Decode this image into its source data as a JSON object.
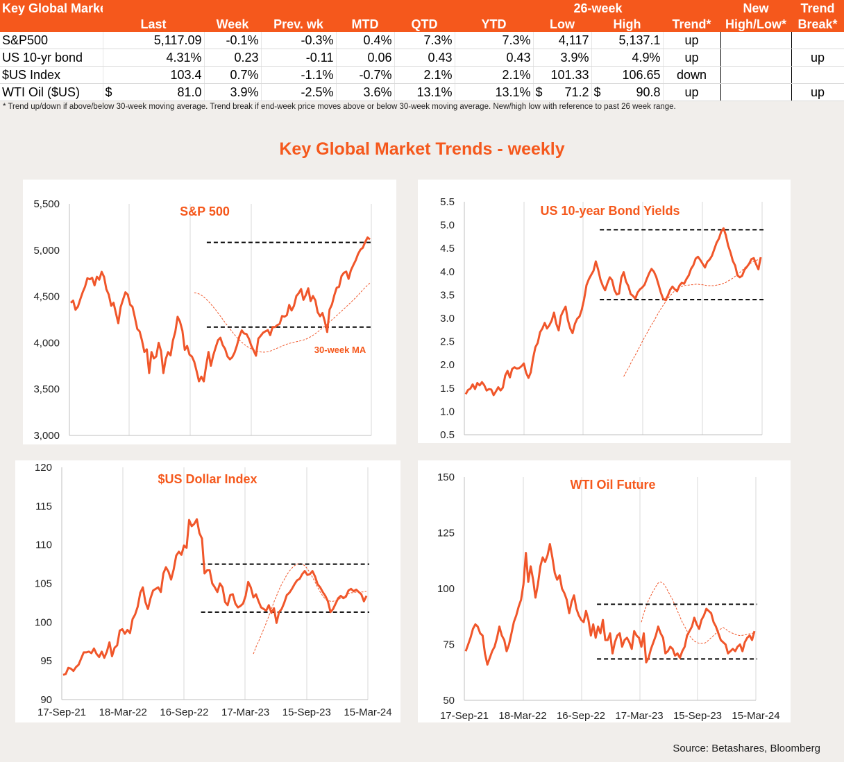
{
  "table": {
    "title": "Key Global Markets",
    "group_header": "26-week",
    "headers": [
      "Last",
      "Week",
      "Prev. wk",
      "MTD",
      "QTD",
      "YTD",
      "Low",
      "High",
      "Trend*",
      "High/Low*",
      "Break*"
    ],
    "top_headers": [
      "New",
      "Trend"
    ],
    "rows": [
      {
        "name": "S&P500",
        "last": "5,117.09",
        "week": "-0.1%",
        "prev_wk": "-0.3%",
        "mtd": "0.4%",
        "qtd": "7.3%",
        "ytd": "7.3%",
        "low": "4,117",
        "high": "5,137.1",
        "trend": "up",
        "new_high_low": "",
        "trend_break": ""
      },
      {
        "name": "US 10-yr bond",
        "last": "4.31%",
        "week": "0.23",
        "prev_wk": "-0.11",
        "mtd": "0.06",
        "qtd": "0.43",
        "ytd": "0.43",
        "low": "3.9%",
        "high": "4.9%",
        "trend": "up",
        "new_high_low": "",
        "trend_break": "up"
      },
      {
        "name": "$US Index",
        "last": "103.4",
        "week": "0.7%",
        "prev_wk": "-1.1%",
        "mtd": "-0.7%",
        "qtd": "2.1%",
        "ytd": "2.1%",
        "low": "101.33",
        "high": "106.65",
        "trend": "down",
        "new_high_low": "",
        "trend_break": ""
      },
      {
        "name": "WTI Oil ($US)",
        "last_prefix": "$",
        "last": "81.0",
        "week": "3.9%",
        "prev_wk": "-2.5%",
        "mtd": "3.6%",
        "qtd": "13.1%",
        "ytd": "13.1%",
        "low_prefix": "$",
        "low": "71.2",
        "high_prefix": "$",
        "high": "90.8",
        "trend": "up",
        "new_high_low": "",
        "trend_break": "up"
      }
    ]
  },
  "footnote": "*  Trend up/down if above/below 30-week moving average. Trend break if end-week price moves above or below 30-week moving average.  New/high low with reference to past 26 week range.",
  "main_title": "Key Global Market Trends - weekly",
  "source": "Source:  Betashares, Bloomberg",
  "colors": {
    "accent": "#f5581c",
    "line": "#f0562a",
    "ma": "#f0562a",
    "range": "#000000"
  },
  "chart_data": [
    {
      "type": "line",
      "title": "S&P 500",
      "ylim": [
        3000,
        5500
      ],
      "yticks": [
        "3,000",
        "3,500",
        "4,000",
        "4,500",
        "5,000",
        "5,500"
      ],
      "annotation": "30-week MA",
      "range_lines": [
        5084,
        4170
      ],
      "series": [
        {
          "name": "",
          "values": [
            4432,
            4455,
            4357,
            4391,
            4471,
            4545,
            4605,
            4697,
            4686,
            4701,
            4620,
            4713,
            4682,
            4766,
            4712,
            4577,
            4520,
            4399,
            4432,
            4320,
            4212,
            4385,
            4467,
            4545,
            4520,
            4412,
            4388,
            4271,
            4149,
            4123,
            4023,
            3901,
            3930,
            3674,
            3900,
            3831,
            3853,
            4000,
            3911,
            3674,
            3825,
            3900,
            3864,
            4023,
            4117,
            4281,
            4228,
            4130,
            3924,
            3966,
            3873,
            3852,
            3794,
            3693,
            3584,
            3635,
            3583,
            3752,
            3901,
            3752,
            3863,
            3949,
            4028,
            4055,
            3975,
            3934,
            3852,
            3822,
            3844,
            3895,
            3972,
            4070,
            4134,
            4100,
            4095,
            4046,
            3970,
            3917,
            3861,
            4045,
            4076,
            4109,
            4124,
            4137,
            4083,
            4171,
            4169,
            4191,
            4205,
            4289,
            4282,
            4299,
            4409,
            4349,
            4398,
            4505,
            4536,
            4581,
            4464,
            4515,
            4588,
            4450,
            4505,
            4458,
            4330,
            4287,
            4321,
            4230,
            4117,
            4358,
            4415,
            4514,
            4594,
            4604,
            4719,
            4755,
            4769,
            4690,
            4784,
            4840,
            4891,
            4959,
            5005,
            5026,
            5089,
            5137,
            5117
          ]
        },
        {
          "name": "",
          "values": [
            4540,
            4537,
            4528,
            4514,
            4495,
            4472,
            4446,
            4418,
            4388,
            4356,
            4322,
            4288,
            4253,
            4218,
            4184,
            4151,
            4118,
            4087,
            4058,
            4031,
            4006,
            3984,
            3965,
            3949,
            3935,
            3924,
            3915,
            3907,
            3901,
            3899,
            3900,
            3904,
            3911,
            3920,
            3931,
            3942,
            3953,
            3964,
            3975,
            3985,
            3993,
            4000,
            4006,
            4012,
            4017,
            4023,
            4030,
            4039,
            4051,
            4065,
            4081,
            4099,
            4118,
            4139,
            4160,
            4181,
            4203,
            4225,
            4248,
            4271,
            4294,
            4317,
            4341,
            4365,
            4389,
            4413,
            4438,
            4463,
            4488,
            4515,
            4542,
            4570,
            4597,
            4622,
            4645
          ]
        }
      ]
    },
    {
      "type": "line",
      "title": "US 10-year Bond Yields",
      "ylim": [
        0.5,
        5.5
      ],
      "yticks": [
        "0.5",
        "1.0",
        "1.5",
        "2.0",
        "2.5",
        "3.0",
        "3.5",
        "4.0",
        "4.5",
        "5.0",
        "5.5"
      ],
      "range_lines": [
        4.9,
        3.4
      ],
      "series": [
        {
          "name": "",
          "values": [
            1.37,
            1.46,
            1.49,
            1.58,
            1.48,
            1.61,
            1.56,
            1.63,
            1.56,
            1.45,
            1.48,
            1.47,
            1.35,
            1.43,
            1.52,
            1.45,
            1.51,
            1.77,
            1.87,
            1.73,
            1.91,
            1.95,
            1.92,
            1.93,
            1.97,
            2.03,
            1.83,
            1.72,
            1.84,
            2.14,
            2.38,
            2.47,
            2.7,
            2.78,
            2.9,
            2.78,
            2.85,
            2.95,
            3.12,
            2.88,
            2.74,
            3.05,
            3.16,
            3.25,
            2.96,
            2.78,
            2.68,
            2.88,
            2.99,
            3.04,
            3.19,
            3.42,
            3.71,
            3.84,
            3.93,
            4.02,
            4.22,
            4.05,
            3.83,
            3.7,
            3.6,
            3.75,
            3.88,
            3.82,
            3.61,
            3.51,
            3.53,
            3.87,
            3.99,
            3.79,
            3.69,
            3.52,
            3.48,
            3.42,
            3.55,
            3.62,
            3.66,
            3.72,
            3.85,
            3.97,
            4.06,
            4.0,
            3.89,
            3.72,
            3.55,
            3.42,
            3.39,
            3.48,
            3.61,
            3.68,
            3.62,
            3.58,
            3.7,
            3.76,
            3.74,
            3.84,
            3.92,
            4.06,
            4.14,
            4.28,
            4.32,
            4.25,
            4.17,
            4.09,
            4.21,
            4.26,
            4.34,
            4.48,
            4.62,
            4.71,
            4.86,
            4.93,
            4.78,
            4.56,
            4.41,
            4.23,
            4.13,
            3.92,
            3.88,
            3.91,
            4.04,
            4.1,
            4.17,
            4.27,
            4.29,
            4.16,
            4.05,
            4.31
          ]
        },
        {
          "name": "",
          "values": [
            1.75,
            1.84,
            1.93,
            2.03,
            2.12,
            2.21,
            2.3,
            2.4,
            2.5,
            2.59,
            2.68,
            2.77,
            2.86,
            2.94,
            3.03,
            3.12,
            3.2,
            3.28,
            3.35,
            3.42,
            3.48,
            3.54,
            3.59,
            3.63,
            3.66,
            3.68,
            3.7,
            3.71,
            3.71,
            3.72,
            3.72,
            3.73,
            3.73,
            3.72,
            3.72,
            3.71,
            3.7,
            3.7,
            3.7,
            3.7,
            3.71,
            3.72,
            3.73,
            3.75,
            3.77,
            3.8,
            3.83,
            3.86,
            3.9,
            3.94,
            3.98,
            4.03,
            4.08,
            4.12,
            4.16,
            4.19,
            4.22,
            4.24,
            4.26,
            4.28
          ]
        }
      ]
    },
    {
      "type": "line",
      "title": "$US Dollar Index",
      "ylim": [
        90,
        120
      ],
      "yticks": [
        "90",
        "95",
        "100",
        "105",
        "110",
        "115",
        "120"
      ],
      "xticks": [
        "17-Sep-21",
        "18-Mar-22",
        "16-Sep-22",
        "17-Mar-23",
        "15-Sep-23",
        "15-Mar-24"
      ],
      "range_lines": [
        107.5,
        101.3
      ],
      "series": [
        {
          "name": "",
          "values": [
            93.2,
            93.3,
            94.1,
            94.0,
            93.7,
            94.2,
            94.5,
            95.3,
            96.1,
            96.1,
            96.2,
            96.0,
            96.6,
            95.9,
            95.5,
            96.2,
            95.4,
            96.2,
            97.4,
            95.6,
            96.7,
            97.0,
            98.9,
            99.1,
            98.5,
            99.0,
            98.6,
            100.4,
            101.0,
            102.0,
            103.8,
            104.5,
            102.6,
            101.7,
            103.1,
            104.1,
            104.3,
            104.5,
            103.9,
            106.3,
            107.1,
            106.5,
            105.5,
            106.8,
            108.6,
            109.1,
            108.7,
            109.9,
            109.6,
            113.2,
            112.4,
            112.7,
            113.3,
            111.5,
            110.8,
            106.3,
            106.7,
            106.7,
            105.0,
            104.5,
            103.9,
            105.0,
            104.5,
            102.6,
            102.2,
            103.5,
            103.6,
            102.4,
            101.9,
            102.1,
            102.4,
            103.4,
            105.2,
            104.5,
            103.2,
            103.6,
            102.7,
            101.9,
            101.7,
            101.5,
            102.2,
            101.2,
            101.8,
            99.9,
            101.3,
            101.7,
            102.5,
            103.5,
            103.8,
            104.3,
            104.9,
            105.4,
            105.6,
            106.2,
            106.6,
            106.1,
            106.2,
            106.6,
            105.9,
            104.9,
            104.5,
            103.9,
            103.4,
            102.7,
            101.3,
            101.7,
            102.4,
            103.1,
            103.4,
            103.1,
            103.3,
            104.1,
            104.3,
            104.0,
            104.2,
            103.9,
            103.6,
            102.7,
            103.4
          ]
        },
        {
          "name": "",
          "values": [
            95.9,
            96.8,
            97.5,
            98.3,
            99.1,
            99.9,
            100.8,
            101.7,
            102.6,
            103.4,
            104.2,
            104.9,
            105.5,
            106.1,
            106.6,
            107.0,
            107.3,
            107.5,
            107.6,
            107.5,
            107.3,
            106.9,
            106.4,
            105.8,
            105.2,
            104.5,
            103.9,
            103.4,
            103.0,
            102.8,
            102.7,
            102.7,
            102.8,
            102.9,
            103.1,
            103.3,
            103.5,
            103.7,
            103.8,
            103.8,
            103.9,
            103.9,
            103.9,
            103.9,
            104.0
          ]
        }
      ]
    },
    {
      "type": "line",
      "title": "WTI Oil Future",
      "ylim": [
        50,
        150
      ],
      "yticks": [
        "50",
        "75",
        "100",
        "125",
        "150"
      ],
      "xticks": [
        "17-Sep-21",
        "18-Mar-22",
        "16-Sep-22",
        "17-Mar-23",
        "15-Sep-23",
        "15-Mar-24"
      ],
      "range_lines": [
        93,
        68.5
      ],
      "series": [
        {
          "name": "",
          "values": [
            72,
            75,
            78,
            82,
            84,
            83,
            80,
            79,
            71,
            66,
            69,
            72,
            74,
            78,
            83,
            79,
            77,
            72,
            75,
            80,
            85,
            88,
            92,
            95,
            102,
            116,
            103,
            110,
            104,
            96,
            102,
            110,
            114,
            112,
            115,
            120,
            114,
            107,
            104,
            106,
            100,
            98,
            95,
            89,
            94,
            97,
            91,
            88,
            86,
            85,
            90,
            86,
            79,
            84,
            78,
            83,
            80,
            86,
            77,
            77,
            80,
            71,
            76,
            79,
            80,
            74,
            77,
            78,
            76,
            73,
            81,
            79,
            78,
            74,
            80,
            67,
            69,
            73,
            76,
            79,
            83,
            80,
            78,
            71,
            72,
            74,
            73,
            70,
            71,
            69,
            72,
            74,
            79,
            81,
            83,
            87,
            84,
            82,
            86,
            88,
            91,
            90,
            89,
            85,
            83,
            80,
            77,
            76,
            75,
            71,
            72,
            73,
            72,
            74,
            75,
            72,
            76,
            78,
            79,
            77,
            81
          ]
        },
        {
          "name": "",
          "values": [
            85,
            89,
            92,
            95,
            97,
            99,
            101,
            102.5,
            103,
            102.5,
            101,
            99,
            97,
            95,
            92.5,
            90,
            87.5,
            85,
            83,
            81,
            79,
            77.5,
            76.5,
            76,
            75.5,
            75.5,
            75.5,
            76,
            77,
            78,
            79,
            80,
            81,
            82,
            82.5,
            82,
            81,
            80.5,
            80,
            79.5,
            79.2,
            79,
            79.1,
            79.3,
            79.5,
            79.8,
            80,
            80.3
          ]
        }
      ]
    }
  ]
}
